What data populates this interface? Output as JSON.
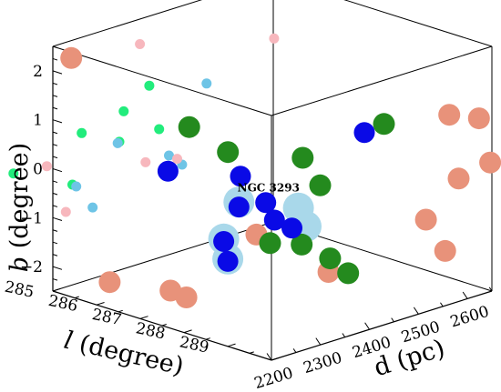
{
  "chart_data": {
    "type": "scatter",
    "title": "",
    "xlabel": "l (degree)",
    "xlabel_var": "l",
    "xlabel_unit": "(degree)",
    "ylabel": "d (pc)",
    "ylabel_var": "d",
    "ylabel_unit": "(pc)",
    "zlabel": "b (degree)",
    "zlabel_var": "b",
    "zlabel_unit": "(degree)",
    "xlim": [
      285,
      290
    ],
    "ylim": [
      2200,
      2650
    ],
    "zlim": [
      -2.5,
      2.5
    ],
    "x_ticks": [
      "285",
      "286",
      "287",
      "288",
      "289"
    ],
    "y_ticks": [
      "2200",
      "2300",
      "2400",
      "2500",
      "2600"
    ],
    "z_ticks": [
      "−2",
      "−1",
      "0",
      "1",
      "2"
    ],
    "annotations": [
      {
        "text": "NGC 3293",
        "l": 288.1,
        "d": 2300,
        "b": 0.1
      }
    ],
    "colors": {
      "orange": "#e8927a",
      "pink": "#f7b7bd",
      "green": "#248a1e",
      "spring": "#22ec7c",
      "blue": "#0a0ae6",
      "lightblue": "#6ec4e6",
      "halo": "#a9d8ea"
    },
    "series": [
      {
        "values": [
          {
            "l": 284.3,
            "d": 2300,
            "b": 1.75,
            "c": "orange"
          },
          {
            "l": 288.8,
            "d": 2670,
            "b": 0.7,
            "c": "orange"
          },
          {
            "l": 290.6,
            "d": 2570,
            "b": 1.45,
            "c": "orange"
          },
          {
            "l": 289.8,
            "d": 2600,
            "b": -0.1,
            "c": "orange"
          },
          {
            "l": 289.4,
            "d": 2700,
            "b": -0.2,
            "c": "orange"
          },
          {
            "l": 289.5,
            "d": 2560,
            "b": -0.9,
            "c": "orange"
          },
          {
            "l": 290.5,
            "d": 2510,
            "b": -1.1,
            "c": "orange"
          },
          {
            "l": 288.2,
            "d": 2330,
            "b": -0.85,
            "c": "orange"
          },
          {
            "l": 286.3,
            "d": 2200,
            "b": -1.95,
            "c": "orange"
          },
          {
            "l": 287.3,
            "d": 2235,
            "b": -1.95,
            "c": "orange"
          },
          {
            "l": 287.55,
            "d": 2245,
            "b": -2.05,
            "c": "orange"
          },
          {
            "l": 289.4,
            "d": 2370,
            "b": -1.4,
            "c": "orange"
          }
        ]
      },
      {
        "values": [
          {
            "l": 285.2,
            "d": 2360,
            "b": 2.1,
            "c": "pink"
          },
          {
            "l": 286.7,
            "d": 2500,
            "b": 2.2,
            "c": "pink"
          },
          {
            "l": 284.75,
            "d": 2210,
            "b": -0.05,
            "c": "pink"
          },
          {
            "l": 283.75,
            "d": 2150,
            "b": -1.1,
            "c": "pink"
          },
          {
            "l": 284.85,
            "d": 2240,
            "b": -1.05,
            "c": "pink"
          },
          {
            "l": 286.0,
            "d": 2300,
            "b": 0.1,
            "c": "pink"
          },
          {
            "l": 286.5,
            "d": 2320,
            "b": 0.25,
            "c": "pink"
          }
        ]
      },
      {
        "values": [
          {
            "l": 286.55,
            "d": 2340,
            "b": 0.85,
            "c": "green"
          },
          {
            "l": 287.1,
            "d": 2370,
            "b": 0.4,
            "c": "green"
          },
          {
            "l": 288.25,
            "d": 2420,
            "b": 0.45,
            "c": "green"
          },
          {
            "l": 288.65,
            "d": 2420,
            "b": 0.0,
            "c": "green"
          },
          {
            "l": 289.1,
            "d": 2510,
            "b": 1.1,
            "c": "green"
          },
          {
            "l": 288.4,
            "d": 2340,
            "b": -1.0,
            "c": "green"
          },
          {
            "l": 288.9,
            "d": 2360,
            "b": -0.95,
            "c": "green"
          },
          {
            "l": 289.55,
            "d": 2360,
            "b": -1.05,
            "c": "green"
          },
          {
            "l": 289.85,
            "d": 2370,
            "b": -1.3,
            "c": "green"
          }
        ]
      },
      {
        "values": [
          {
            "l": 285.75,
            "d": 2330,
            "b": 1.5,
            "c": "spring"
          },
          {
            "l": 285.5,
            "d": 2300,
            "b": 1.0,
            "c": "spring"
          },
          {
            "l": 285.75,
            "d": 2350,
            "b": 0.55,
            "c": "spring"
          },
          {
            "l": 284.1,
            "d": 2200,
            "b": -0.35,
            "c": "spring"
          },
          {
            "l": 285.0,
            "d": 2240,
            "b": -0.45,
            "c": "spring"
          },
          {
            "l": 285.4,
            "d": 2300,
            "b": 0.35,
            "c": "spring"
          },
          {
            "l": 285.1,
            "d": 2250,
            "b": 0.6,
            "c": "spring"
          }
        ]
      },
      {
        "values": [
          {
            "l": 286.4,
            "d": 2310,
            "b": 0.0,
            "c": "blue"
          },
          {
            "l": 287.5,
            "d": 2360,
            "b": 0.05,
            "c": "blue"
          },
          {
            "l": 289.1,
            "d": 2470,
            "b": 1.05,
            "c": "blue"
          },
          {
            "l": 287.8,
            "d": 2330,
            "b": -0.4,
            "c": "blue"
          },
          {
            "l": 288.3,
            "d": 2340,
            "b": -0.2,
            "c": "blue"
          },
          {
            "l": 288.5,
            "d": 2340,
            "b": -0.5,
            "c": "blue"
          },
          {
            "l": 288.9,
            "d": 2340,
            "b": -0.55,
            "c": "blue"
          },
          {
            "l": 287.9,
            "d": 2290,
            "b": -0.95,
            "c": "blue"
          },
          {
            "l": 288.05,
            "d": 2285,
            "b": -1.3,
            "c": "blue"
          }
        ]
      },
      {
        "values": [
          {
            "l": 286.5,
            "d": 2380,
            "b": 1.6,
            "c": "lightblue"
          },
          {
            "l": 285.7,
            "d": 2270,
            "b": 0.5,
            "c": "lightblue"
          },
          {
            "l": 286.2,
            "d": 2330,
            "b": 0.2,
            "c": "lightblue"
          },
          {
            "l": 286.5,
            "d": 2330,
            "b": 0.1,
            "c": "lightblue"
          },
          {
            "l": 285.2,
            "d": 2230,
            "b": -0.4,
            "c": "lightblue"
          },
          {
            "l": 285.35,
            "d": 2250,
            "b": -0.85,
            "c": "lightblue"
          },
          {
            "l": 287.8,
            "d": 2330,
            "b": -0.3,
            "c": "halo"
          },
          {
            "l": 288.6,
            "d": 2380,
            "b": -0.35,
            "c": "halo"
          },
          {
            "l": 289.0,
            "d": 2360,
            "b": -0.55,
            "c": "halo"
          },
          {
            "l": 287.9,
            "d": 2290,
            "b": -0.9,
            "c": "halo"
          },
          {
            "l": 288.05,
            "d": 2285,
            "b": -1.25,
            "c": "halo"
          }
        ]
      }
    ]
  }
}
